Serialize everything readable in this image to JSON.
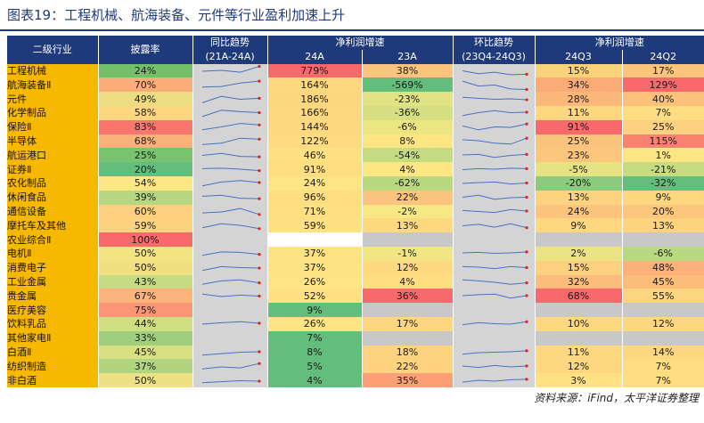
{
  "title": "图表19：工程机械、航海装备、元件等行业盈利加速上升",
  "source": "资料来源：iFind，太平洋证券整理",
  "headers": {
    "industry": "二级行业",
    "disclosure": "披露率",
    "yoy_trend": "同比趋势",
    "yoy_range": "(21A-24A)",
    "growth": "净利润增速",
    "y24": "24A",
    "y23": "23A",
    "qoq_trend": "环比趋势",
    "qoq_range": "(23Q4-24Q3)",
    "growth2": "净利润增速",
    "q3": "24Q3",
    "q2": "24Q2"
  },
  "colors": {
    "header": "#1f3a7a",
    "industry_bg": "#f7b800",
    "sparkline": "#4472c4",
    "spark_end": "#e0201c",
    "spark_bg": "#d4d4d4",
    "empty": "#c8c8c8"
  },
  "rows": [
    {
      "name": "工程机械",
      "rate": "24%",
      "y24": "779%",
      "y23": "38%",
      "q3": "15%",
      "q2": "17%",
      "c_rate": "#73c06b",
      "c_y24": "#f7696b",
      "c_y23": "#fcc47d",
      "c_q3": "#f9d27a",
      "c_q2": "#fbc57b",
      "yoy": [
        0.45,
        0.55,
        0.35,
        0.95
      ],
      "qoq": [
        0.5,
        0.2,
        0.35,
        0.1,
        0.15
      ]
    },
    {
      "name": "航海装备Ⅱ",
      "rate": "70%",
      "y24": "164%",
      "y23": "-569%",
      "q3": "34%",
      "q2": "129%",
      "c_rate": "#fbac78",
      "c_y24": "#fed881",
      "c_y23": "#63be7b",
      "c_q3": "#fbac76",
      "c_q2": "#f8696b",
      "yoy": [
        0.3,
        0.35,
        0.7,
        0.9
      ],
      "qoq": [
        0.9,
        0.4,
        0.5,
        0.1,
        0.05
      ]
    },
    {
      "name": "元件",
      "rate": "49%",
      "y24": "186%",
      "y23": "-23%",
      "q3": "28%",
      "q2": "40%",
      "c_rate": "#ecdd82",
      "c_y24": "#fdd680",
      "c_y23": "#e0e283",
      "c_q3": "#fcb87a",
      "c_q2": "#fcc27c",
      "yoy": [
        0.15,
        0.8,
        0.5,
        0.6
      ],
      "qoq": [
        0.7,
        0.6,
        0.5,
        0.55,
        0.45
      ]
    },
    {
      "name": "化学制品",
      "rate": "58%",
      "y24": "166%",
      "y23": "-36%",
      "q3": "11%",
      "q2": "7%",
      "c_rate": "#fdd780",
      "c_y24": "#fed880",
      "c_y23": "#d6e082",
      "c_q3": "#fdd880",
      "c_q2": "#fedc81",
      "yoy": [
        0.1,
        0.75,
        0.6,
        0.5
      ],
      "qoq": [
        0.2,
        0.5,
        0.7,
        0.5,
        0.55
      ]
    },
    {
      "name": "保险Ⅱ",
      "rate": "83%",
      "y24": "144%",
      "y23": "-6%",
      "q3": "91%",
      "q2": "25%",
      "c_rate": "#f8766d",
      "c_y24": "#fed981",
      "c_y23": "#ebe582",
      "c_q3": "#f8696b",
      "c_q2": "#fdd17f",
      "yoy": [
        0.2,
        0.5,
        0.85,
        0.7
      ],
      "qoq": [
        0.6,
        0.2,
        0.5,
        0.45,
        0.8
      ]
    },
    {
      "name": "半导体",
      "rate": "68%",
      "y24": "122%",
      "y23": "8%",
      "q3": "25%",
      "q2": "115%",
      "c_rate": "#fbb279",
      "c_y24": "#fedb81",
      "c_y23": "#fee582",
      "c_q3": "#fcc37d",
      "c_q2": "#f98370",
      "yoy": [
        0.15,
        0.3,
        0.8,
        0.7
      ],
      "qoq": [
        0.65,
        0.55,
        0.3,
        0.2,
        0.8
      ]
    },
    {
      "name": "航运港口",
      "rate": "25%",
      "y24": "46%",
      "y23": "-54%",
      "q3": "23%",
      "q2": "1%",
      "c_rate": "#7ac36e",
      "c_y24": "#fee282",
      "c_y23": "#c4db81",
      "c_q3": "#fcc67d",
      "c_q2": "#fde583",
      "yoy": [
        0.5,
        0.7,
        0.4,
        0.35
      ],
      "qoq": [
        0.55,
        0.6,
        0.3,
        0.5,
        0.6
      ]
    },
    {
      "name": "证券Ⅱ",
      "rate": "20%",
      "y24": "91%",
      "y23": "4%",
      "q3": "-5%",
      "q2": "-21%",
      "c_rate": "#63be7b",
      "c_y24": "#fede81",
      "c_y23": "#fee683",
      "c_q3": "#e6e383",
      "c_q2": "#c5dc81",
      "yoy": [
        0.6,
        0.65,
        0.55,
        0.4
      ],
      "qoq": [
        0.5,
        0.6,
        0.55,
        0.65,
        0.6
      ]
    },
    {
      "name": "农化制品",
      "rate": "54%",
      "y24": "24%",
      "y23": "-62%",
      "q3": "-20%",
      "q2": "-32%",
      "c_rate": "#fde783",
      "c_y24": "#fee482",
      "c_y23": "#b9d880",
      "c_q3": "#8cca7e",
      "c_q2": "#63be7b",
      "yoy": [
        0.2,
        0.6,
        0.75,
        0.55
      ],
      "qoq": [
        0.45,
        0.55,
        0.6,
        0.4,
        0.5
      ]
    },
    {
      "name": "休闲食品",
      "rate": "39%",
      "y24": "96%",
      "y23": "22%",
      "q3": "13%",
      "q2": "9%",
      "c_rate": "#b6d67f",
      "c_y24": "#fede81",
      "c_y23": "#fcc47e",
      "c_q3": "#fdd37f",
      "c_q2": "#fed880",
      "yoy": [
        0.6,
        0.7,
        0.4,
        0.35
      ],
      "qoq": [
        0.5,
        0.7,
        0.3,
        0.45,
        0.5
      ]
    },
    {
      "name": "通信设备",
      "rate": "60%",
      "y24": "71%",
      "y23": "-2%",
      "q3": "24%",
      "q2": "20%",
      "c_rate": "#fdcf7e",
      "c_y24": "#fee081",
      "c_y23": "#f7e883",
      "c_q3": "#fcc47d",
      "c_q2": "#fcc77d",
      "yoy": [
        0.35,
        0.45,
        0.8,
        0.2
      ],
      "qoq": [
        0.6,
        0.5,
        0.4,
        0.7,
        0.55
      ]
    },
    {
      "name": "摩托车及其他",
      "rate": "59%",
      "y24": "59%",
      "y23": "13%",
      "q3": "9%",
      "q2": "13%",
      "c_rate": "#fdd27f",
      "c_y24": "#fee181",
      "c_y23": "#fed980",
      "c_q3": "#fed780",
      "c_q2": "#fdd380",
      "yoy": [
        0.3,
        0.7,
        0.55,
        0.2
      ],
      "qoq": [
        0.5,
        0.65,
        0.35,
        0.7,
        0.3
      ]
    },
    {
      "name": "农业综合Ⅱ",
      "rate": "100%",
      "y24": "",
      "y23": "",
      "q3": "",
      "q2": "",
      "c_rate": "#f8696b",
      "c_y24": "",
      "c_y23": "#c8c8c8",
      "c_q3": "#c8c8c8",
      "c_q2": "#c8c8c8",
      "yoy": [],
      "qoq": []
    },
    {
      "name": "电机Ⅱ",
      "rate": "50%",
      "y24": "37%",
      "y23": "-1%",
      "q3": "2%",
      "q2": "-6%",
      "c_rate": "#f3e482",
      "c_y24": "#fee382",
      "c_y23": "#f1e683",
      "c_q3": "#ece384",
      "c_q2": "#b9d980",
      "yoy": [
        0.3,
        0.65,
        0.6,
        0.4
      ],
      "qoq": [
        0.55,
        0.6,
        0.5,
        0.55,
        0.65
      ]
    },
    {
      "name": "消费电子",
      "rate": "50%",
      "y24": "37%",
      "y23": "12%",
      "q3": "15%",
      "q2": "48%",
      "c_rate": "#f0e082",
      "c_y24": "#fee382",
      "c_y23": "#fed980",
      "c_q3": "#fcd07f",
      "c_q2": "#fcb17a",
      "yoy": [
        0.2,
        0.6,
        0.5,
        0.45
      ],
      "qoq": [
        0.6,
        0.55,
        0.4,
        0.6,
        0.5
      ]
    },
    {
      "name": "工业金属",
      "rate": "43%",
      "y24": "26%",
      "y23": "4%",
      "q3": "32%",
      "q2": "45%",
      "c_rate": "#c5db81",
      "c_y24": "#fee482",
      "c_y23": "#fede81",
      "c_q3": "#fcbc7b",
      "c_q2": "#fcbd7b",
      "yoy": [
        0.25,
        0.6,
        0.7,
        0.4
      ],
      "qoq": [
        0.7,
        0.6,
        0.45,
        0.25,
        0.4
      ]
    },
    {
      "name": "贵金属",
      "rate": "67%",
      "y24": "52%",
      "y23": "36%",
      "q3": "68%",
      "q2": "55%",
      "c_rate": "#fcb47a",
      "c_y24": "#fee282",
      "c_y23": "#f8696b",
      "c_q3": "#f8696b",
      "c_q2": "#fdd480",
      "yoy": [
        0.7,
        0.45,
        0.6,
        0.5
      ],
      "qoq": [
        0.55,
        0.65,
        0.7,
        0.3,
        0.55
      ]
    },
    {
      "name": "医疗美容",
      "rate": "75%",
      "y24": "9%",
      "y23": "",
      "q3": "",
      "q2": "",
      "c_rate": "#fa9673",
      "c_y24": "#63be7b",
      "c_y23": "#c8c8c8",
      "c_q3": "#c8c8c8",
      "c_q2": "#c8c8c8",
      "yoy": [],
      "qoq": []
    },
    {
      "name": "饮料乳品",
      "rate": "44%",
      "y24": "26%",
      "y23": "17%",
      "q3": "10%",
      "q2": "12%",
      "c_rate": "#d0de82",
      "c_y24": "#fee482",
      "c_y23": "#fed580",
      "c_q3": "#fed880",
      "c_q2": "#fdd780",
      "yoy": [
        0.45,
        0.6,
        0.7,
        0.55
      ],
      "qoq": [
        0.4,
        0.6,
        0.5,
        0.45,
        0.7
      ]
    },
    {
      "name": "其他家电Ⅱ",
      "rate": "33%",
      "y24": "7%",
      "y23": "",
      "q3": "",
      "q2": "",
      "c_rate": "#9fcf7c",
      "c_y24": "#63be7b",
      "c_y23": "#c8c8c8",
      "c_q3": "#c8c8c8",
      "c_q2": "#c8c8c8",
      "yoy": [],
      "qoq": []
    },
    {
      "name": "白酒Ⅱ",
      "rate": "45%",
      "y24": "8%",
      "y23": "18%",
      "q3": "11%",
      "q2": "14%",
      "c_rate": "#d7e082",
      "c_y24": "#63be7b",
      "c_y23": "#fed37f",
      "c_q3": "#fed880",
      "c_q2": "#fdd680",
      "yoy": [
        0.2,
        0.35,
        0.5,
        0.55
      ],
      "qoq": [
        0.3,
        0.45,
        0.5,
        0.55,
        0.65
      ]
    },
    {
      "name": "纺织制造",
      "rate": "37%",
      "y24": "5%",
      "y23": "22%",
      "q3": "12%",
      "q2": "7%",
      "c_rate": "#b0d47f",
      "c_y24": "#63be7b",
      "c_y23": "#fed27f",
      "c_q3": "#fed780",
      "c_q2": "#fedc81",
      "yoy": [
        0.25,
        0.45,
        0.35,
        0.8
      ],
      "qoq": [
        0.55,
        0.4,
        0.6,
        0.45,
        0.55
      ]
    },
    {
      "name": "非白酒",
      "rate": "50%",
      "y24": "4%",
      "y23": "35%",
      "q3": "3%",
      "q2": "7%",
      "c_rate": "#ede183",
      "c_y24": "#63be7b",
      "c_y23": "#fc9f76",
      "c_q3": "#fee283",
      "c_q2": "#fedc81",
      "yoy": [
        0.3,
        0.4,
        0.5,
        0.45
      ],
      "qoq": [
        0.35,
        0.55,
        0.45,
        0.6,
        0.65
      ]
    }
  ]
}
